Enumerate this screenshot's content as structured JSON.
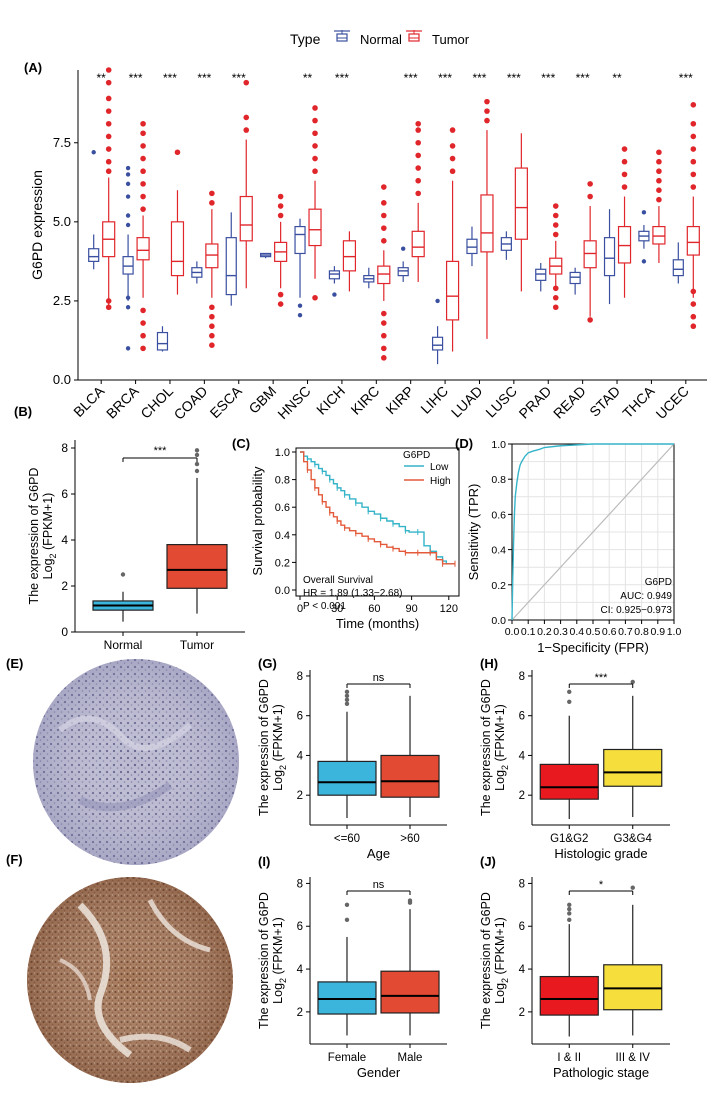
{
  "colors": {
    "normal": "#3a4fa0",
    "tumor": "#e0262b",
    "boxBlue": "#3bb5dc",
    "boxRed": "#e34a33",
    "boxYellow": "#f6df3c",
    "boxBrightRed": "#e8191f",
    "km_low": "#35b4c9",
    "km_high": "#e35a3a",
    "roc": "#35b4c9",
    "stain_blue": "#a7a6c3",
    "stain_brown": "#a47859"
  },
  "legend": {
    "title": "Type",
    "items": [
      "Normal",
      "Tumor"
    ]
  },
  "panel_labels": {
    "A": "(A)",
    "B": "(B)",
    "C": "(C)",
    "D": "(D)",
    "E": "(E)",
    "F": "(F)",
    "G": "(G)",
    "H": "(H)",
    "I": "(I)",
    "J": "(J)"
  },
  "panelA": {
    "type": "box",
    "ylabel": "G6PD expression",
    "yticks": [
      "0.0",
      "2.5",
      "5.0",
      "7.5"
    ],
    "ylim": [
      0,
      9.8
    ],
    "categories": [
      "BLCA",
      "BRCA",
      "CHOL",
      "COAD",
      "ESCA",
      "GBM",
      "HNSC",
      "KICH",
      "KIRC",
      "KIRP",
      "LIHC",
      "LUAD",
      "LUSC",
      "PRAD",
      "READ",
      "STAD",
      "THCA",
      "UCEC"
    ],
    "significance": [
      "**",
      "***",
      "***",
      "***",
      "***",
      "",
      "**",
      "***",
      "",
      "***",
      "***",
      "***",
      "***",
      "***",
      "***",
      "**",
      "",
      "***"
    ],
    "normal": [
      {
        "min": 3.5,
        "q1": 3.75,
        "med": 3.9,
        "q3": 4.15,
        "max": 4.6,
        "outliers": [
          7.2
        ]
      },
      {
        "min": 2.5,
        "q1": 3.35,
        "med": 3.6,
        "q3": 3.9,
        "max": 4.6,
        "outliers": [
          1.0,
          2.3,
          2.6,
          4.9,
          5.2,
          5.8,
          6.2,
          6.5,
          6.7
        ]
      },
      {
        "min": 0.9,
        "q1": 0.95,
        "med": 1.15,
        "q3": 1.5,
        "max": 1.7,
        "outliers": []
      },
      {
        "min": 3.05,
        "q1": 3.25,
        "med": 3.4,
        "q3": 3.55,
        "max": 3.75,
        "outliers": []
      },
      {
        "min": 2.35,
        "q1": 2.7,
        "med": 3.3,
        "q3": 4.5,
        "max": 5.3,
        "outliers": []
      },
      {
        "min": 3.85,
        "q1": 3.9,
        "med": 3.95,
        "q3": 4.0,
        "max": 4.0,
        "outliers": []
      },
      {
        "min": 2.6,
        "q1": 4.0,
        "med": 4.6,
        "q3": 4.85,
        "max": 5.1,
        "outliers": [
          2.05,
          2.35
        ]
      },
      {
        "min": 3.05,
        "q1": 3.2,
        "med": 3.35,
        "q3": 3.45,
        "max": 3.6,
        "outliers": [
          2.7
        ]
      },
      {
        "min": 2.9,
        "q1": 3.1,
        "med": 3.2,
        "q3": 3.3,
        "max": 3.55,
        "outliers": []
      },
      {
        "min": 3.1,
        "q1": 3.3,
        "med": 3.45,
        "q3": 3.55,
        "max": 3.75,
        "outliers": [
          4.15
        ]
      },
      {
        "min": 0.5,
        "q1": 0.95,
        "med": 1.1,
        "q3": 1.35,
        "max": 1.7,
        "outliers": [
          2.5
        ]
      },
      {
        "min": 3.6,
        "q1": 4.0,
        "med": 4.2,
        "q3": 4.45,
        "max": 4.85,
        "outliers": []
      },
      {
        "min": 3.8,
        "q1": 4.1,
        "med": 4.3,
        "q3": 4.5,
        "max": 4.7,
        "outliers": []
      },
      {
        "min": 2.8,
        "q1": 3.15,
        "med": 3.35,
        "q3": 3.5,
        "max": 3.7,
        "outliers": []
      },
      {
        "min": 2.7,
        "q1": 3.05,
        "med": 3.25,
        "q3": 3.4,
        "max": 3.55,
        "outliers": []
      },
      {
        "min": 2.4,
        "q1": 3.3,
        "med": 3.85,
        "q3": 4.5,
        "max": 5.4,
        "outliers": []
      },
      {
        "min": 4.15,
        "q1": 4.4,
        "med": 4.55,
        "q3": 4.7,
        "max": 4.9,
        "outliers": [
          3.75,
          5.3
        ]
      },
      {
        "min": 3.05,
        "q1": 3.3,
        "med": 3.5,
        "q3": 3.8,
        "max": 4.35,
        "outliers": []
      }
    ],
    "tumor": [
      {
        "min": 2.3,
        "q1": 3.9,
        "med": 4.45,
        "q3": 5.0,
        "max": 6.4,
        "outliers": [
          2.3,
          2.5,
          6.6,
          6.9,
          7.3,
          7.7,
          8.1,
          8.5,
          8.9,
          9.4,
          9.8
        ]
      },
      {
        "min": 2.6,
        "q1": 3.8,
        "med": 4.1,
        "q3": 4.5,
        "max": 5.2,
        "outliers": [
          1.0,
          1.4,
          1.8,
          2.2,
          5.4,
          5.8,
          6.2,
          6.6,
          7.0,
          7.4,
          7.8,
          8.1
        ]
      },
      {
        "min": 2.7,
        "q1": 3.3,
        "med": 3.75,
        "q3": 5.0,
        "max": 6.0,
        "outliers": [
          7.2
        ]
      },
      {
        "min": 2.6,
        "q1": 3.55,
        "med": 3.95,
        "q3": 4.3,
        "max": 5.4,
        "outliers": [
          1.1,
          1.4,
          1.7,
          2.0,
          2.3,
          5.6,
          5.9
        ]
      },
      {
        "min": 2.9,
        "q1": 4.4,
        "med": 4.9,
        "q3": 5.8,
        "max": 7.6,
        "outliers": [
          7.9,
          8.3,
          9.4
        ]
      },
      {
        "min": 2.9,
        "q1": 3.75,
        "med": 4.05,
        "q3": 4.35,
        "max": 5.0,
        "outliers": [
          2.4,
          2.7,
          5.2,
          5.5,
          5.8
        ]
      },
      {
        "min": 3.2,
        "q1": 4.25,
        "med": 4.75,
        "q3": 5.4,
        "max": 6.3,
        "outliers": [
          2.6,
          6.6,
          7.0,
          7.4,
          7.8,
          8.2,
          8.6
        ]
      },
      {
        "min": 2.8,
        "q1": 3.45,
        "med": 3.9,
        "q3": 4.4,
        "max": 4.7,
        "outliers": []
      },
      {
        "min": 2.5,
        "q1": 3.05,
        "med": 3.35,
        "q3": 3.6,
        "max": 4.1,
        "outliers": [
          0.7,
          1.0,
          1.4,
          1.8,
          2.1,
          4.4,
          4.8,
          5.2,
          5.6,
          6.1
        ]
      },
      {
        "min": 3.1,
        "q1": 3.9,
        "med": 4.2,
        "q3": 4.7,
        "max": 5.6,
        "outliers": [
          5.9,
          6.3,
          6.7,
          7.1,
          7.5,
          7.9,
          8.1
        ]
      },
      {
        "min": 0.9,
        "q1": 1.9,
        "med": 2.65,
        "q3": 3.75,
        "max": 6.3,
        "outliers": [
          6.6,
          7.0,
          7.4,
          7.9
        ]
      },
      {
        "min": 1.3,
        "q1": 4.05,
        "med": 4.65,
        "q3": 5.85,
        "max": 7.9,
        "outliers": [
          8.2,
          8.5,
          8.8
        ]
      },
      {
        "min": 2.8,
        "q1": 4.45,
        "med": 5.45,
        "q3": 6.7,
        "max": 7.8,
        "outliers": []
      },
      {
        "min": 2.85,
        "q1": 3.35,
        "med": 3.6,
        "q3": 3.85,
        "max": 4.4,
        "outliers": [
          2.3,
          2.6,
          2.9,
          4.6,
          4.9,
          5.2,
          5.5
        ]
      },
      {
        "min": 2.0,
        "q1": 3.55,
        "med": 4.0,
        "q3": 4.4,
        "max": 5.5,
        "outliers": [
          1.9,
          5.8,
          6.2
        ]
      },
      {
        "min": 2.6,
        "q1": 3.7,
        "med": 4.25,
        "q3": 4.85,
        "max": 5.8,
        "outliers": [
          6.1,
          6.5,
          6.9,
          7.3
        ]
      },
      {
        "min": 3.7,
        "q1": 4.3,
        "med": 4.55,
        "q3": 4.85,
        "max": 5.5,
        "outliers": [
          5.7,
          6.0,
          6.3,
          6.6,
          6.9,
          7.2
        ]
      },
      {
        "min": 2.6,
        "q1": 3.95,
        "med": 4.35,
        "q3": 4.85,
        "max": 5.8,
        "outliers": [
          1.7,
          2.0,
          2.4,
          2.8,
          6.1,
          6.5,
          6.9,
          7.3,
          7.7,
          8.1,
          8.7
        ]
      }
    ]
  },
  "panelB": {
    "type": "box",
    "ylabel_line1": "The expression of G6PD",
    "ylabel_line2_prefix": "Log",
    "ylabel_line2_sub": "2",
    "ylabel_line2_suffix": " (FPKM+1)",
    "yticks": [
      "0",
      "2",
      "4",
      "6",
      "8"
    ],
    "ylim": [
      0,
      8
    ],
    "categories": [
      "Normal",
      "Tumor"
    ],
    "significance": "***",
    "boxes": [
      {
        "min": 0.45,
        "q1": 0.95,
        "med": 1.15,
        "q3": 1.35,
        "max": 1.75,
        "outliers": [
          2.5
        ]
      },
      {
        "min": 0.8,
        "q1": 1.9,
        "med": 2.7,
        "q3": 3.8,
        "max": 6.7,
        "outliers": [
          7.0,
          7.3,
          7.7,
          7.9
        ]
      }
    ]
  },
  "panelC": {
    "type": "line",
    "ylabel": "Survival probability",
    "xlabel": "Time (months)",
    "xticks": [
      "0",
      "30",
      "60",
      "90",
      "120"
    ],
    "yticks": [
      "0.0",
      "0.2",
      "0.4",
      "0.6",
      "0.8",
      "1.0"
    ],
    "xlim": [
      0,
      125
    ],
    "ylim": [
      0,
      1
    ],
    "legend_title": "G6PD",
    "series": [
      {
        "name": "Low",
        "x": [
          0,
          3,
          6,
          9,
          12,
          15,
          18,
          21,
          24,
          27,
          30,
          33,
          36,
          40,
          45,
          50,
          55,
          60,
          65,
          70,
          75,
          80,
          85,
          88,
          95,
          100,
          105,
          110,
          115,
          118,
          125
        ],
        "y": [
          1.0,
          0.97,
          0.95,
          0.93,
          0.91,
          0.88,
          0.86,
          0.83,
          0.8,
          0.77,
          0.74,
          0.72,
          0.69,
          0.66,
          0.63,
          0.6,
          0.57,
          0.55,
          0.52,
          0.5,
          0.48,
          0.46,
          0.43,
          0.42,
          0.42,
          0.32,
          0.28,
          0.24,
          0.21,
          0.19,
          0.19
        ]
      },
      {
        "name": "High",
        "x": [
          0,
          3,
          6,
          9,
          12,
          15,
          18,
          21,
          24,
          27,
          30,
          33,
          36,
          40,
          45,
          50,
          55,
          60,
          65,
          70,
          75,
          80,
          85,
          88,
          95,
          100,
          105,
          110,
          115,
          118,
          125
        ],
        "y": [
          1.0,
          0.93,
          0.87,
          0.8,
          0.74,
          0.69,
          0.64,
          0.6,
          0.56,
          0.53,
          0.5,
          0.47,
          0.45,
          0.43,
          0.41,
          0.39,
          0.37,
          0.35,
          0.33,
          0.31,
          0.3,
          0.28,
          0.27,
          0.27,
          0.27,
          0.27,
          0.27,
          0.22,
          0.19,
          0.19,
          0.19
        ]
      }
    ],
    "annotation": [
      "Overall Survival",
      "HR = 1.89 (1.33−2.68)",
      "P < 0.001"
    ]
  },
  "panelD": {
    "type": "line",
    "ylabel": "Sensitivity (TPR)",
    "xlabel": "1−Specificity (FPR)",
    "xticks": [
      "0.0",
      "0.1",
      "0.2",
      "0.3",
      "0.4",
      "0.5",
      "0.6",
      "0.7",
      "0.8",
      "0.9",
      "1.0"
    ],
    "yticks": [
      "0.0",
      "0.2",
      "0.4",
      "0.6",
      "0.8",
      "1.0"
    ],
    "roc": {
      "x": [
        0,
        0.005,
        0.01,
        0.015,
        0.02,
        0.03,
        0.04,
        0.05,
        0.06,
        0.08,
        0.1,
        0.13,
        0.17,
        0.2,
        0.3,
        0.5,
        0.7,
        1.0
      ],
      "y": [
        0,
        0.25,
        0.45,
        0.6,
        0.7,
        0.78,
        0.84,
        0.88,
        0.9,
        0.93,
        0.95,
        0.96,
        0.97,
        0.98,
        0.99,
        1.0,
        1.0,
        1.0
      ]
    },
    "annotation": [
      "G6PD",
      "AUC: 0.949",
      "CI: 0.925−0.973"
    ]
  },
  "boxPanels": [
    {
      "key": "G",
      "xlabel": "Age",
      "categories": [
        "<=60",
        ">60"
      ],
      "significance": "ns",
      "fills": [
        "boxBlue",
        "boxRed"
      ],
      "boxes": [
        {
          "min": 0.85,
          "q1": 2.0,
          "med": 2.65,
          "q3": 3.7,
          "max": 6.2,
          "outliers": [
            6.6,
            6.8,
            7.0,
            7.2
          ]
        },
        {
          "min": 0.9,
          "q1": 1.9,
          "med": 2.7,
          "q3": 4.0,
          "max": 7.0,
          "outliers": []
        }
      ]
    },
    {
      "key": "H",
      "xlabel": "Histologic grade",
      "categories": [
        "G1&G2",
        "G3&G4"
      ],
      "significance": "***",
      "fills": [
        "boxBrightRed",
        "boxYellow"
      ],
      "boxes": [
        {
          "min": 0.8,
          "q1": 1.8,
          "med": 2.4,
          "q3": 3.55,
          "max": 6.0,
          "outliers": [
            6.7,
            7.2
          ]
        },
        {
          "min": 0.9,
          "q1": 2.45,
          "med": 3.15,
          "q3": 4.3,
          "max": 7.0,
          "outliers": [
            7.7
          ]
        }
      ]
    },
    {
      "key": "I",
      "xlabel": "Gender",
      "categories": [
        "Female",
        "Male"
      ],
      "significance": "ns",
      "fills": [
        "boxBlue",
        "boxRed"
      ],
      "boxes": [
        {
          "min": 0.9,
          "q1": 1.9,
          "med": 2.6,
          "q3": 3.4,
          "max": 5.5,
          "outliers": [
            6.3,
            7.0
          ]
        },
        {
          "min": 0.9,
          "q1": 1.95,
          "med": 2.75,
          "q3": 3.9,
          "max": 6.8,
          "outliers": [
            7.1,
            7.2
          ]
        }
      ]
    },
    {
      "key": "J",
      "xlabel": "Pathologic stage",
      "categories": [
        "I & II",
        "III & IV"
      ],
      "significance": "*",
      "fills": [
        "boxBrightRed",
        "boxYellow"
      ],
      "boxes": [
        {
          "min": 0.85,
          "q1": 1.85,
          "med": 2.6,
          "q3": 3.65,
          "max": 6.1,
          "outliers": [
            6.3,
            6.6,
            6.8,
            7.0
          ]
        },
        {
          "min": 0.9,
          "q1": 2.1,
          "med": 3.1,
          "q3": 4.2,
          "max": 7.0,
          "outliers": [
            7.8
          ]
        }
      ]
    }
  ],
  "smallBoxYticks": [
    "2",
    "4",
    "6",
    "8"
  ],
  "smallBoxYlim": [
    0.5,
    8.3
  ]
}
